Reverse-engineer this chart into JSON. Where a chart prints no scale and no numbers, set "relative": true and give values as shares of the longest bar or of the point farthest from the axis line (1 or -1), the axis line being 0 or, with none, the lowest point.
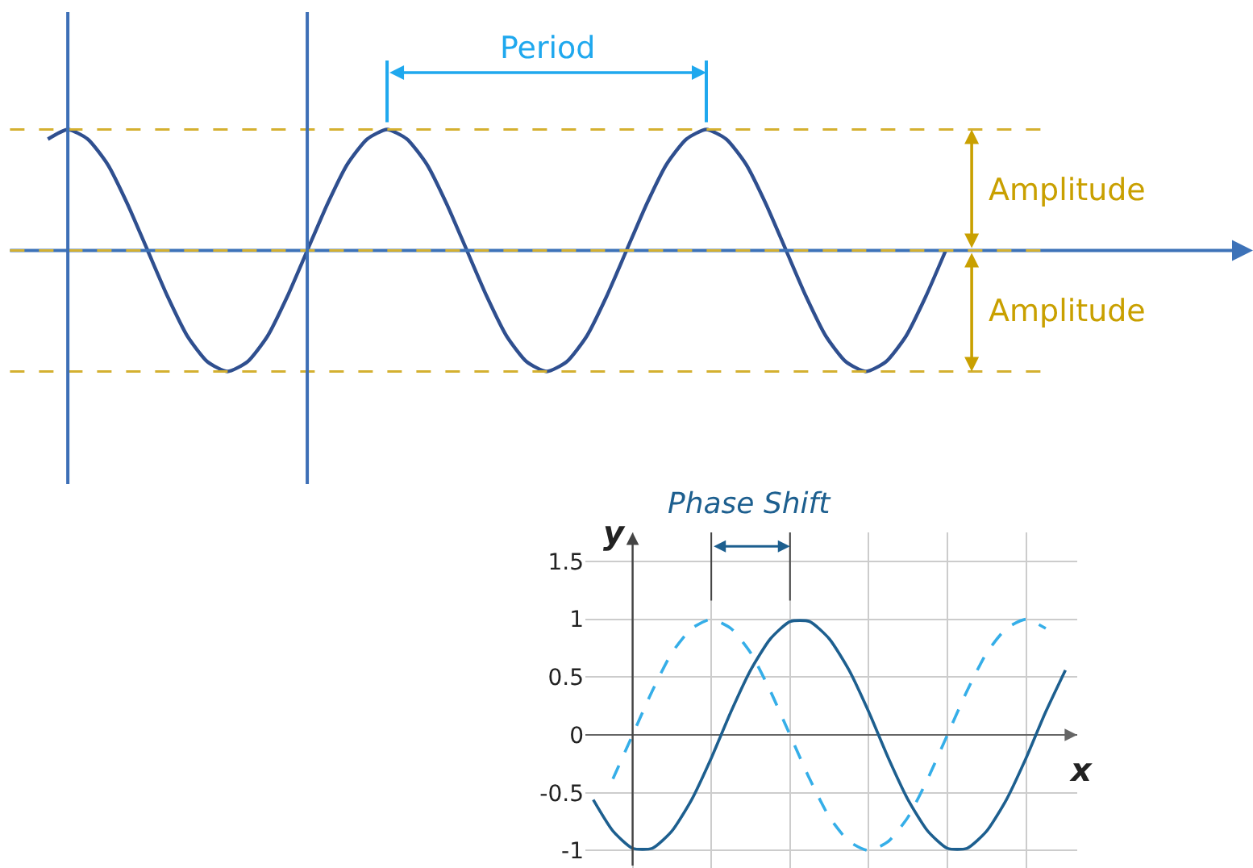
{
  "chart_data": [
    {
      "type": "line",
      "relative": true,
      "tick_labels": false,
      "grid": false,
      "categories": [
        null,
        null,
        null,
        null,
        null,
        null,
        null,
        null,
        null,
        null,
        null,
        null,
        null,
        null,
        null,
        null,
        null,
        null,
        null,
        null,
        null,
        null,
        null,
        null,
        null,
        null,
        null,
        null,
        null,
        null,
        null,
        null,
        null,
        null,
        null,
        null,
        null,
        null,
        null,
        null,
        null,
        null,
        null,
        null,
        null,
        null
      ],
      "series": [
        {
          "color": "#2f4f8f",
          "values": [
            0.92,
            1,
            0.92,
            0.71,
            0.38,
            0,
            -0.38,
            -0.71,
            -0.92,
            -1,
            -0.92,
            -0.71,
            -0.38,
            0,
            0.38,
            0.71,
            0.92,
            1,
            0.92,
            0.71,
            0.38,
            0,
            -0.38,
            -0.71,
            -0.92,
            -1,
            -0.92,
            -0.71,
            -0.38,
            0,
            0.38,
            0.71,
            0.92,
            1,
            0.92,
            0.71,
            0.38,
            0,
            -0.38,
            -0.71,
            -0.92,
            -1,
            -0.92,
            -0.71,
            -0.38,
            0
          ]
        }
      ],
      "ref_lines": [
        {
          "axis": "y",
          "value": 0,
          "color": "#3d72b8",
          "line_style": "solid"
        },
        {
          "axis": "y",
          "value": 1,
          "color": "#d4b030",
          "line_style": "dashed"
        },
        {
          "axis": "y",
          "value": -1,
          "color": "#d4b030",
          "line_style": "dashed"
        },
        {
          "axis": "y",
          "value": 0,
          "color": "#d4b030",
          "line_style": "dashed"
        }
      ],
      "annotations": [
        "Period",
        "Amplitude",
        "Amplitude"
      ]
    },
    {
      "type": "line",
      "tick_labels": "y",
      "grid": true,
      "xlabel": "x",
      "ylabel": "y",
      "categories": [
        null,
        null,
        null,
        null,
        null,
        null,
        null,
        null,
        null,
        null,
        null,
        null,
        null,
        null,
        null,
        null,
        null,
        null,
        null,
        null,
        null,
        null,
        null,
        null,
        null
      ],
      "ylim": [
        -1.15,
        1.75
      ],
      "yticks": [
        -1,
        -0.5,
        0,
        0.5,
        1,
        1.5
      ],
      "series": [
        {
          "color": "#1d5f8f",
          "line_style": "solid",
          "values": [
            -0.56,
            -0.83,
            -0.98,
            -0.98,
            -0.83,
            -0.56,
            -0.2,
            0.2,
            0.56,
            0.83,
            0.98,
            0.98,
            0.83,
            0.56,
            0.2,
            -0.2,
            -0.56,
            -0.83,
            -0.98,
            -0.98,
            -0.83,
            -0.56,
            -0.2,
            0.2,
            0.56
          ]
        },
        {
          "color": "#35aee8",
          "line_style": "dashed",
          "values": [
            null,
            -0.38,
            0,
            0.38,
            0.71,
            0.92,
            1,
            0.92,
            0.71,
            0.38,
            0,
            -0.38,
            -0.71,
            -0.92,
            -1,
            -0.92,
            -0.71,
            -0.38,
            0,
            0.38,
            0.71,
            0.92,
            1,
            0.92,
            null
          ]
        }
      ],
      "annotations": [
        "Phase Shift"
      ]
    }
  ]
}
